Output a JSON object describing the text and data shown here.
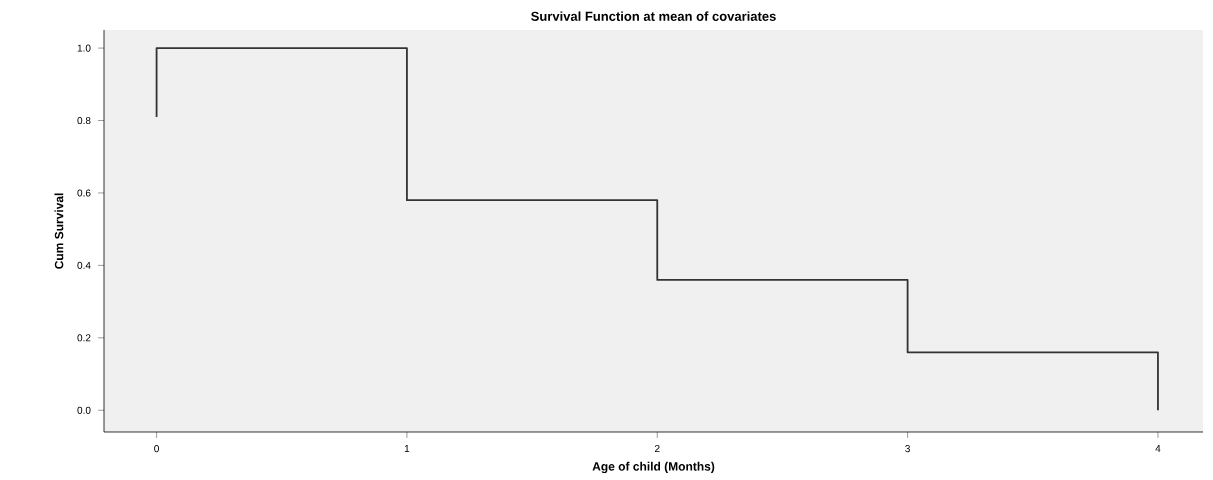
{
  "chart_data": {
    "type": "step",
    "title": "Survival Function at mean of covariates",
    "xlabel": "Age of child (Months)",
    "ylabel": "Cum Survival",
    "x": [
      0,
      0,
      1,
      2,
      3,
      4
    ],
    "values": [
      0.81,
      1.0,
      0.58,
      0.36,
      0.16,
      0.0
    ],
    "color": "#333333",
    "xlim": [
      -0.21,
      4.18
    ],
    "ylim": [
      -0.06,
      1.05
    ],
    "xticks": [
      0,
      1,
      2,
      3,
      4
    ],
    "yticks": [
      {
        "value": 0,
        "label": "0.0"
      },
      {
        "value": 0.2,
        "label": "0.2"
      },
      {
        "value": 0.4,
        "label": "0.4"
      },
      {
        "value": 0.6,
        "label": "0.6"
      },
      {
        "value": 0.8,
        "label": "0.8"
      },
      {
        "value": 1.0,
        "label": "1.0"
      }
    ]
  }
}
